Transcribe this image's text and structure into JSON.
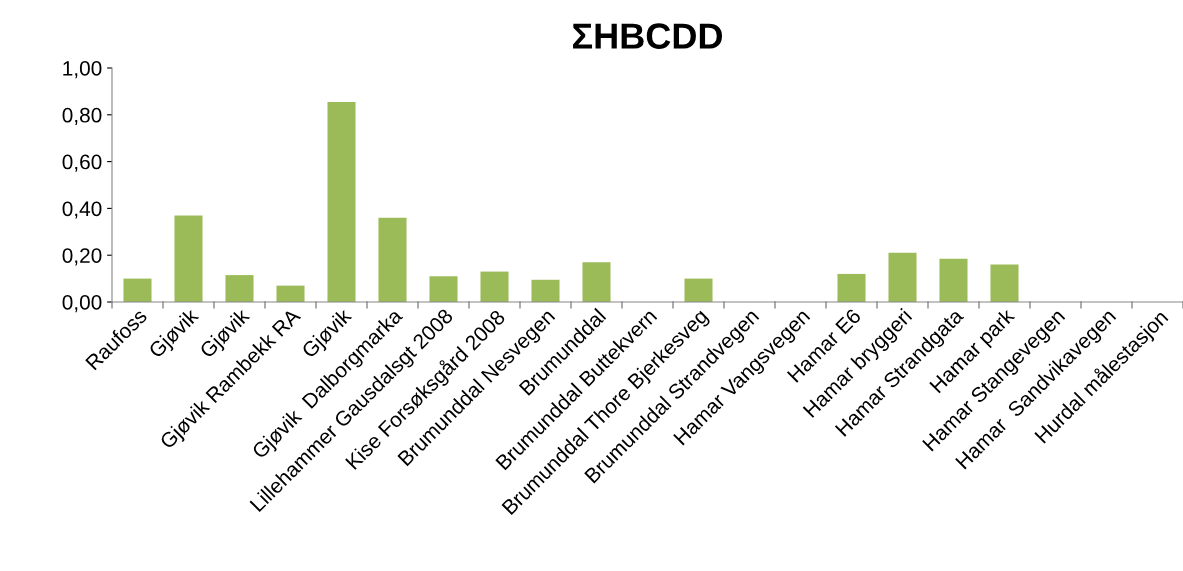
{
  "chart_data": {
    "type": "bar",
    "title": "ΣHBCDD",
    "categories": [
      "Raufoss",
      "Gjøvik",
      "Gjøvik",
      "Gjøvik Rambekk RA",
      "Gjøvik",
      "Gjøvik  Dalborgmarka",
      "Lillehammer Gausdalsgt 2008",
      "Kise Forsøksgård 2008",
      "Brumunddal Nesvegen",
      "Brumunddal",
      "Brumunddal Buttekvern",
      "Brumunddal Thore Bjerkesveg",
      "Brumunddal Strandvegen",
      "Hamar Vangsvegen",
      "Hamar E6",
      "Hamar bryggeri",
      "Hamar Strandgata",
      "Hamar park",
      "Hamar Stangevegen",
      "Hamar  Sandvikavegen",
      "Hurdal målestasjon"
    ],
    "values": [
      0.1,
      0.37,
      0.115,
      0.07,
      0.855,
      0.36,
      0.11,
      0.13,
      0.095,
      0.17,
      null,
      0.1,
      null,
      null,
      0.12,
      0.21,
      0.185,
      0.16,
      null,
      null,
      null
    ],
    "color": "#9bbb59",
    "ylim": [
      0,
      1
    ],
    "yticks": [
      {
        "value": 0,
        "label": "0,00"
      },
      {
        "value": 0.2,
        "label": "0,20"
      },
      {
        "value": 0.4,
        "label": "0,40"
      },
      {
        "value": 0.6,
        "label": "0,60"
      },
      {
        "value": 0.8,
        "label": "0,80"
      },
      {
        "value": 1,
        "label": "1,00"
      }
    ],
    "grid": false
  }
}
